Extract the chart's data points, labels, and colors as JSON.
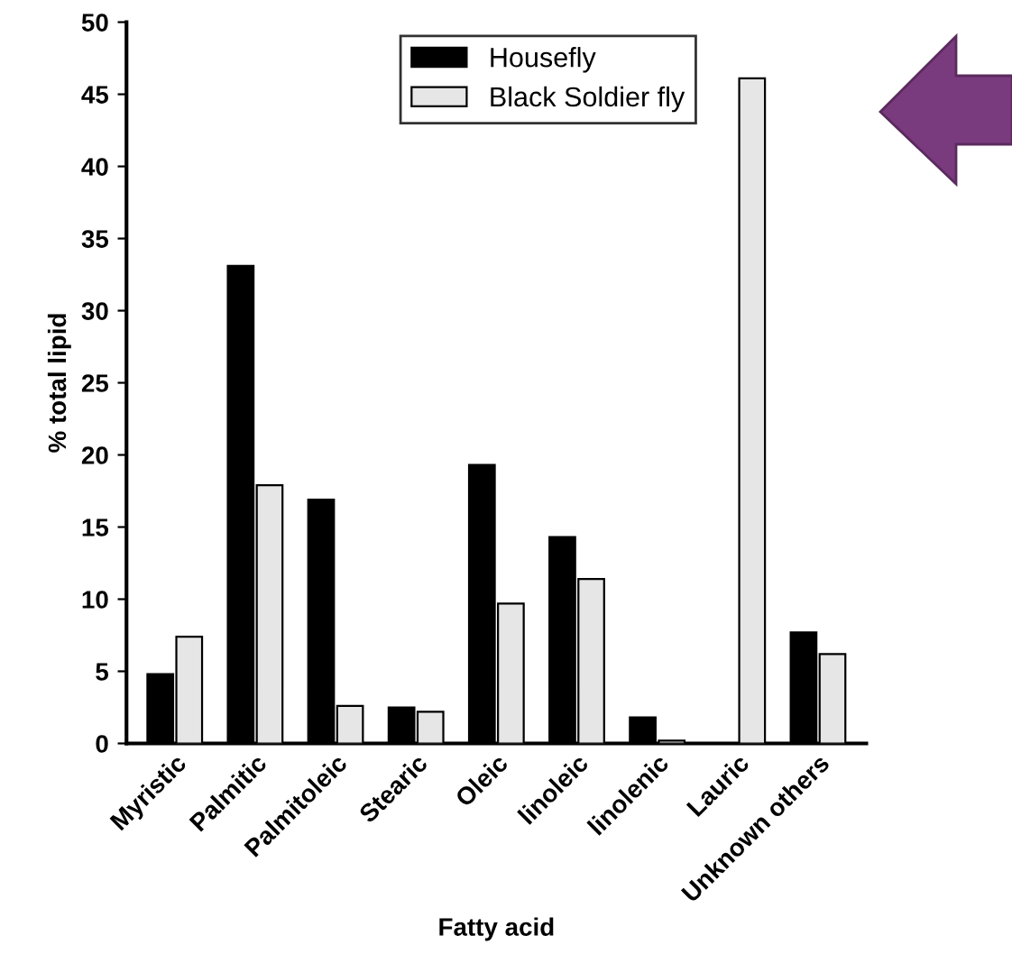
{
  "chart_data": {
    "type": "bar",
    "xlabel": "Fatty acid",
    "ylabel": "% total lipid",
    "categories": [
      "Myristic",
      "Palmitic",
      "Palmitoleic",
      "Stearic",
      "Oleic",
      "linoleic",
      "linolenic",
      "Lauric",
      "Unknown others"
    ],
    "series": [
      {
        "name": "Housefly",
        "color": "#000000",
        "values": [
          4.8,
          33.1,
          16.9,
          2.5,
          19.3,
          14.3,
          1.8,
          0,
          7.7
        ]
      },
      {
        "name": "Black Soldier fly",
        "color": "#e6e6e6",
        "values": [
          7.4,
          17.9,
          2.6,
          2.2,
          9.7,
          11.4,
          0.2,
          46.1,
          6.2
        ]
      }
    ],
    "ylim": [
      0,
      50
    ],
    "yticks": [
      0,
      5,
      10,
      15,
      20,
      25,
      30,
      35,
      40,
      45,
      50
    ],
    "grid": false,
    "legend": "top"
  }
}
